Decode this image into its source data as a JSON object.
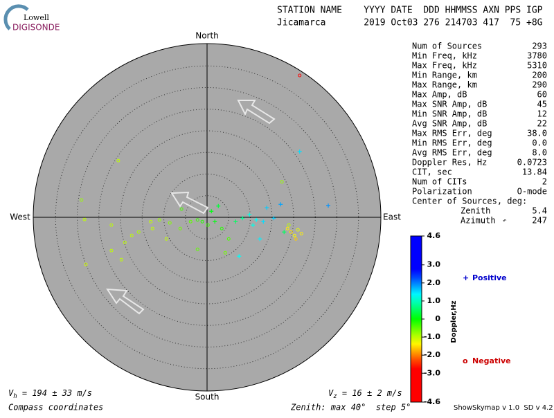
{
  "logo": {
    "top": "Lowell",
    "bottom": "DIGISONDE"
  },
  "header": {
    "line1": "STATION NAME    YYYY DATE  DDD HHMMSS AXN PPS IGP",
    "line2": "Jicamarca       2019 Oct03 276 214703 417  75 +8G"
  },
  "directions": {
    "north": "North",
    "south": "South",
    "east": "East",
    "west": "West"
  },
  "stats": [
    [
      "Num of Sources",
      "293"
    ],
    [
      "Min Freq, kHz",
      "3780"
    ],
    [
      "Max Freq, kHz",
      "5310"
    ],
    [
      "Min Range, km",
      "200"
    ],
    [
      "Max Range, km",
      "290"
    ],
    [
      "Max Amp, dB",
      "60"
    ],
    [
      "Max SNR Amp, dB",
      "45"
    ],
    [
      "Min SNR Amp, dB",
      "12"
    ],
    [
      "Avg SNR Amp, dB",
      "22"
    ],
    [
      "Max RMS Err, deg",
      "38.0"
    ],
    [
      "Min RMS Err, deg",
      "0.0"
    ],
    [
      "Avg RMS Err, deg",
      "8.0"
    ],
    [
      "Doppler Res, Hz",
      "0.0723"
    ],
    [
      "CIT, sec",
      "13.84"
    ],
    [
      "Num of CITs",
      "2"
    ],
    [
      "Polarization",
      "O-mode"
    ]
  ],
  "center": {
    "title": "Center of Sources, deg:",
    "zenith_label": "Zenith",
    "zenith": "5.4",
    "azimuth_label": "Azimuth",
    "azimuth": "247"
  },
  "chart_data": {
    "type": "skymap",
    "zenith_max": 40,
    "zenith_step": 5,
    "colorbar": {
      "label": "Doppler,Hz",
      "lim": [
        -4.6,
        4.6
      ],
      "ticks": [
        4.6,
        {
          "value": 3.0,
          "label": "3.0"
        },
        {
          "value": 2.0,
          "label": "2.0"
        },
        {
          "value": 1.0,
          "label": "1.0"
        },
        0,
        {
          "value": -1.0,
          "label": "-1.0"
        },
        {
          "value": -2.0,
          "label": "-2.0"
        },
        {
          "value": -3.0,
          "label": "-3.0"
        },
        -4.6
      ]
    },
    "legend": {
      "positive": {
        "symbol": "+",
        "name": "Positive",
        "color": "#0000cc"
      },
      "negative": {
        "symbol": "o",
        "name": "Negative",
        "color": "#cc0000"
      }
    },
    "east": [
      21.4,
      21.4,
      -20.5,
      -29.0,
      -28.3,
      -22.1,
      -22.1,
      -28.0,
      -19.0,
      -15.8,
      -13.0,
      -9.4,
      -6.2,
      -3.8,
      -2.2,
      -1.1,
      0.2,
      1.8,
      3.4,
      5.0,
      2.6,
      6.6,
      8.2,
      9.8,
      11.4,
      13.0,
      13.8,
      15.4,
      17.0,
      12.2,
      7.4,
      17.3,
      28.0,
      18.6,
      19.4,
      20.2,
      21.0,
      21.8,
      20.5,
      18.9,
      17.8,
      -12.6,
      -11.0,
      -8.6,
      -17.4,
      -19.8,
      -2.2,
      4.2,
      -5.9,
      1.0,
      10.6
    ],
    "north": [
      32.8,
      15.2,
      13.1,
      4.0,
      -0.5,
      -1.8,
      -7.7,
      -10.9,
      -5.8,
      -3.4,
      -1.0,
      -5.0,
      -2.6,
      -1.0,
      -0.6,
      -1.0,
      -1.8,
      -1.0,
      -2.6,
      -5.0,
      2.6,
      -1.0,
      -0.2,
      0.6,
      -0.6,
      -1.0,
      2.2,
      -0.2,
      3.0,
      -5.0,
      -9.0,
      8.2,
      2.7,
      -2.6,
      -3.4,
      -4.2,
      -2.9,
      -3.8,
      -5.0,
      -1.8,
      -3.4,
      -2.6,
      -0.6,
      -1.3,
      -4.2,
      -9.8,
      -7.4,
      -8.2,
      1.9,
      1.4,
      -1.8
    ],
    "doppler": [
      -3.5,
      1.5,
      -1.0,
      -0.8,
      -1.0,
      -1.0,
      -1.0,
      -1.1,
      -1.0,
      -0.9,
      -1.0,
      -1.0,
      -0.6,
      -0.5,
      -0.3,
      -0.2,
      -0.3,
      0.1,
      -0.2,
      -0.4,
      0.3,
      0.5,
      0.8,
      1.2,
      1.3,
      1.5,
      1.6,
      1.6,
      1.8,
      1.4,
      1.3,
      -0.8,
      1.9,
      -1.4,
      -1.5,
      -1.3,
      -1.2,
      -1.4,
      -1.6,
      -1.0,
      0.5,
      -1.0,
      -0.8,
      -0.7,
      -1.0,
      -1.0,
      -0.5,
      -0.6,
      -0.4,
      0.1,
      1.2
    ]
  },
  "footer": {
    "vh": {
      "symbol": "V",
      "sub": "h",
      "text": " = 194 ± 33 m/s"
    },
    "vz": {
      "symbol": "V",
      "sub": "z",
      "text": " = 16 ± 2 m/s"
    },
    "coords": "Compass coordinates",
    "zenith": "Zenith: max 40°  step 5°",
    "version": "ShowSkymap v 1.0  SD v 4.2"
  }
}
